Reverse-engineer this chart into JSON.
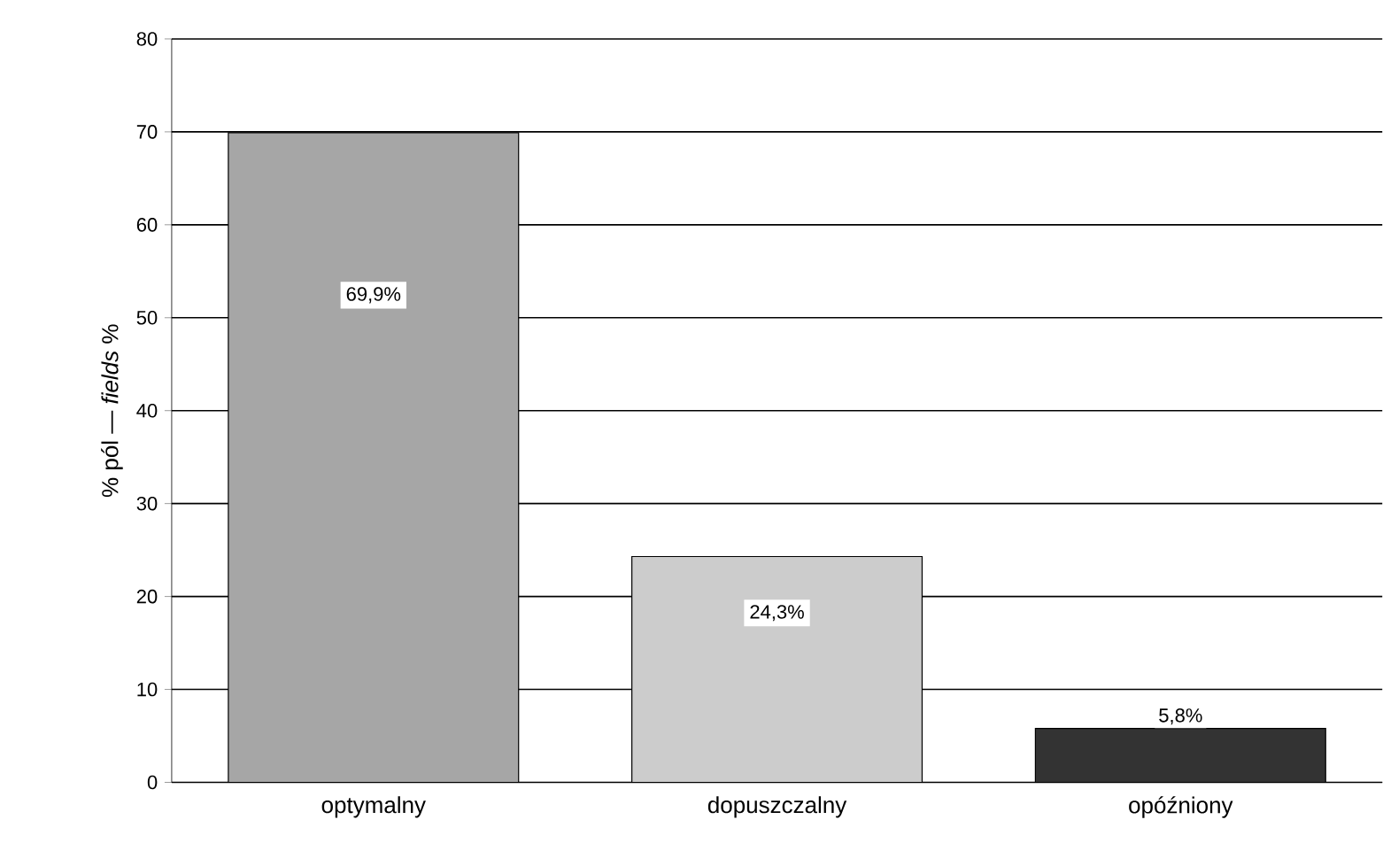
{
  "chart_data": {
    "type": "bar",
    "ylabel": "% pól — *fields* %",
    "categories": [
      "optymalny",
      "dopuszczalny",
      "opóźniony"
    ],
    "values": [
      69.9,
      24.3,
      5.8
    ],
    "colors": [
      "#a6a6a6",
      "#cccccc",
      "#333333"
    ],
    "value_labels": [
      "69,9%",
      "24,3%",
      "5,8%"
    ],
    "ylim": [
      0,
      80
    ],
    "yticks": [
      0,
      10,
      20,
      30,
      40,
      50,
      60,
      70,
      80
    ],
    "grid": "y"
  }
}
